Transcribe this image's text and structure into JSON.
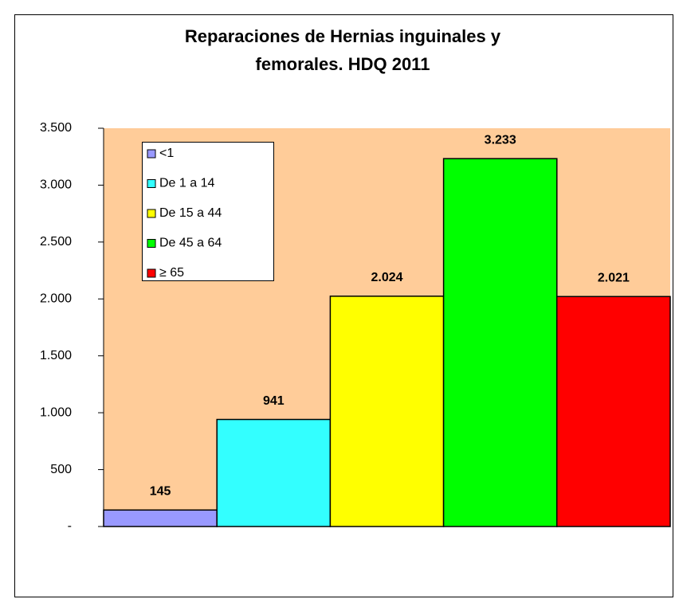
{
  "chart_data": {
    "type": "bar",
    "title": [
      "Reparaciones de Hernias inguinales y",
      "femorales. HDQ  2011"
    ],
    "series": [
      {
        "name": "<1",
        "color": "#9999ff",
        "values": [
          145
        ]
      },
      {
        "name": "De 1 a 14",
        "color": "#33ffff",
        "values": [
          941
        ]
      },
      {
        "name": " De 15 a 44",
        "color": "#ffff00",
        "values": [
          2024
        ],
        "value_labels": [
          "2.024"
        ]
      },
      {
        "name": " De 45 a 64",
        "color": "#00ff00",
        "values": [
          3233
        ],
        "value_labels": [
          "3.233"
        ]
      },
      {
        "name": "≥ 65",
        "color": "#ff0000",
        "values": [
          2021
        ],
        "value_labels": [
          "2.021"
        ]
      }
    ],
    "ylim": [
      0,
      3500
    ],
    "yticks": [
      {
        "value": 0,
        "label": "-"
      },
      500,
      {
        "value": 1000,
        "label": "1.000"
      },
      {
        "value": 1500,
        "label": "1.500"
      },
      {
        "value": 2000,
        "label": "2.000"
      },
      {
        "value": 2500,
        "label": "2.500"
      },
      {
        "value": 3000,
        "label": "3.000"
      },
      {
        "value": 3500,
        "label": "3.500"
      }
    ],
    "plot_background": "#ffcc99",
    "legend": "upper-left"
  }
}
